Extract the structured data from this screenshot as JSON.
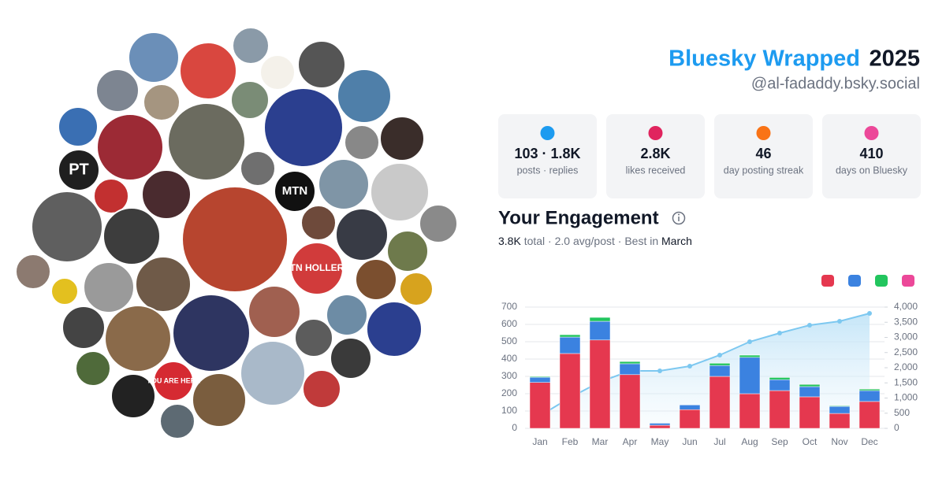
{
  "header": {
    "title": "Bluesky Wrapped",
    "year": "2025",
    "handle": "@al-fadaddy.bsky.social"
  },
  "collage": {
    "labels": [
      "PT",
      "MTN",
      "TN HOLLER",
      "YOU ARE HERE"
    ]
  },
  "stats": [
    {
      "value": "103 · 1.8K",
      "label": "posts · replies",
      "color": "#1d9bf0"
    },
    {
      "value": "2.8K",
      "label": "likes received",
      "color": "#e0245e"
    },
    {
      "value": "46",
      "label": "day posting streak",
      "color": "#f97316"
    },
    {
      "value": "410",
      "label": "days on Bluesky",
      "color": "#ec4899"
    }
  ],
  "engagement": {
    "title": "Your Engagement",
    "total": "3.8K",
    "summary": "total · 2.0 avg/post · Best in",
    "best": "March"
  },
  "chart_data": {
    "type": "bar",
    "stacked": true,
    "categories": [
      "Jan",
      "Feb",
      "Mar",
      "Apr",
      "May",
      "Jun",
      "Jul",
      "Aug",
      "Sep",
      "Oct",
      "Nov",
      "Dec"
    ],
    "series": [
      {
        "color": "#e5384f",
        "values": [
          265,
          432,
          510,
          310,
          18,
          108,
          300,
          200,
          218,
          182,
          86,
          155
        ]
      },
      {
        "color": "#3b82e0",
        "values": [
          30,
          95,
          108,
          63,
          12,
          27,
          63,
          210,
          63,
          59,
          41,
          63
        ]
      },
      {
        "color": "#22c55e",
        "values": [
          5,
          14,
          23,
          13,
          2,
          0,
          13,
          13,
          13,
          13,
          4,
          9
        ]
      },
      {
        "color": "#ec4899",
        "values": [
          1,
          1,
          2,
          1,
          0,
          0,
          1,
          1,
          1,
          1,
          0,
          1
        ]
      },
      {
        "type": "line",
        "axis": "y2",
        "color": "#7dc8f0",
        "values": [
          416,
          1013,
          1532,
          1896,
          1896,
          2052,
          2416,
          2857,
          3143,
          3403,
          3532,
          3792
        ]
      }
    ],
    "ylim": [
      0,
      700
    ],
    "yticks": [
      0,
      100,
      200,
      300,
      400,
      500,
      600,
      700
    ],
    "y2lim": [
      0,
      4000
    ],
    "y2ticks": [
      0,
      500,
      {
        "value": 1000,
        "label": "1,000"
      },
      {
        "value": 1500,
        "label": "1,500"
      },
      {
        "value": 2000,
        "label": "2,000"
      },
      {
        "value": 2500,
        "label": "2,500"
      },
      {
        "value": 3000,
        "label": "3,000"
      },
      {
        "value": 3500,
        "label": "3,500"
      },
      {
        "value": 4000,
        "label": "4,000"
      }
    ],
    "grid": true
  }
}
